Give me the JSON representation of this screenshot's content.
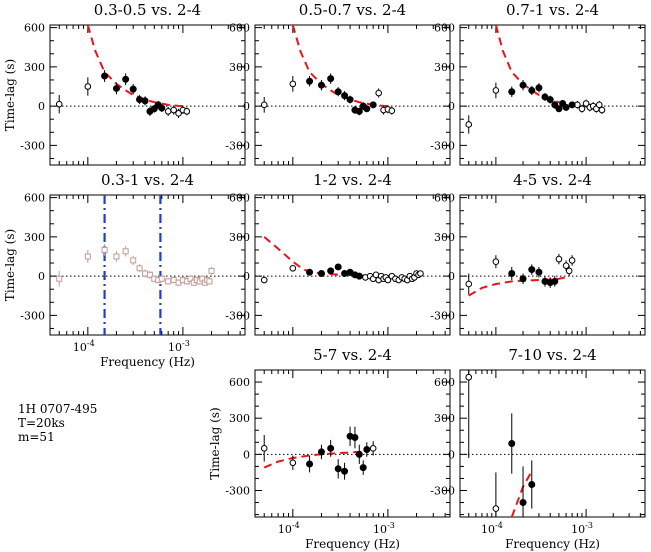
{
  "annotation": {
    "source": "1H 0707-495",
    "exposure": "T=20ks",
    "bins": "m=51"
  },
  "chart_data": [
    {
      "id": "p1",
      "type": "scatter",
      "title": "0.3-0.5 vs. 2-4",
      "ylabel": "Time-lag (s)",
      "xlabel": "",
      "xscale": "log",
      "xlim": [
        4e-05,
        0.0045
      ],
      "ylim": [
        -450,
        620
      ],
      "yticks": [
        -300,
        0,
        300,
        600
      ],
      "xticklabels": false,
      "zero_line": true,
      "model": {
        "x": [
          0.0001,
          0.00012,
          0.00015,
          0.0002,
          0.00025,
          0.0003,
          0.0004,
          0.0005,
          0.0007,
          0.0009,
          0.0011
        ],
        "y": [
          620,
          420,
          260,
          170,
          120,
          85,
          50,
          30,
          10,
          2,
          0
        ]
      },
      "series": [
        {
          "name": "open",
          "marker": "open_circle",
          "x": [
            5e-05,
            0.0001,
            0.0007,
            0.0008,
            0.0009,
            0.001,
            0.0011
          ],
          "y": [
            15,
            150,
            -40,
            -30,
            -55,
            -30,
            -40
          ],
          "err": [
            70,
            70,
            35,
            35,
            35,
            30,
            30
          ]
        },
        {
          "name": "filled",
          "marker": "filled_circle",
          "x": [
            0.00015,
            0.0002,
            0.00025,
            0.0003,
            0.00035,
            0.0004,
            0.00045,
            0.0005,
            0.00055,
            0.0006
          ],
          "y": [
            230,
            135,
            205,
            130,
            50,
            40,
            -40,
            -20,
            10,
            -15
          ],
          "err": [
            45,
            45,
            45,
            40,
            35,
            35,
            35,
            30,
            30,
            30
          ]
        }
      ]
    },
    {
      "id": "p2",
      "type": "scatter",
      "title": "0.5-0.7 vs. 2-4",
      "ylabel": "",
      "xlabel": "",
      "xscale": "log",
      "xlim": [
        4e-05,
        0.0045
      ],
      "ylim": [
        -450,
        620
      ],
      "yticks": [
        -300,
        0,
        300,
        600
      ],
      "xticklabels": false,
      "zero_line": true,
      "model": {
        "x": [
          0.0001,
          0.00012,
          0.00015,
          0.0002,
          0.00025,
          0.0003,
          0.0004,
          0.0005,
          0.0007,
          0.0009,
          0.0011
        ],
        "y": [
          620,
          420,
          260,
          170,
          120,
          85,
          50,
          30,
          10,
          2,
          0
        ]
      },
      "series": [
        {
          "name": "open",
          "marker": "open_circle",
          "x": [
            5e-05,
            0.0001,
            0.0008,
            0.0009,
            0.001,
            0.0011
          ],
          "y": [
            10,
            170,
            100,
            -30,
            -25,
            -35
          ],
          "err": [
            60,
            60,
            35,
            35,
            30,
            30
          ]
        },
        {
          "name": "filled",
          "marker": "filled_circle",
          "x": [
            0.00015,
            0.0002,
            0.00025,
            0.0003,
            0.00035,
            0.0004,
            0.00045,
            0.0005,
            0.00055,
            0.0006,
            0.0007
          ],
          "y": [
            190,
            160,
            210,
            110,
            80,
            50,
            -30,
            -40,
            0,
            -20,
            10
          ],
          "err": [
            40,
            40,
            40,
            35,
            35,
            30,
            30,
            30,
            30,
            25,
            25
          ]
        }
      ]
    },
    {
      "id": "p3",
      "type": "scatter",
      "title": "0.7-1 vs. 2-4",
      "ylabel": "",
      "xlabel": "",
      "xscale": "log",
      "xlim": [
        4e-05,
        0.0045
      ],
      "ylim": [
        -450,
        620
      ],
      "yticks": [
        -300,
        0,
        300,
        600
      ],
      "xticklabels": false,
      "zero_line": true,
      "model": {
        "x": [
          0.0001,
          0.00012,
          0.00015,
          0.0002,
          0.00025,
          0.0003,
          0.0004,
          0.0005,
          0.0007,
          0.0009,
          0.0011
        ],
        "y": [
          620,
          420,
          260,
          170,
          120,
          85,
          50,
          30,
          10,
          2,
          0
        ]
      },
      "series": [
        {
          "name": "open",
          "marker": "open_circle",
          "x": [
            5e-05,
            0.0001,
            0.0008,
            0.0009,
            0.001,
            0.0011,
            0.0012,
            0.0013,
            0.0014,
            0.0015
          ],
          "y": [
            -140,
            120,
            10,
            -20,
            20,
            -10,
            0,
            -20,
            10,
            -30
          ],
          "err": [
            70,
            60,
            30,
            30,
            30,
            30,
            30,
            30,
            30,
            30
          ]
        },
        {
          "name": "filled",
          "marker": "filled_circle",
          "x": [
            0.00015,
            0.0002,
            0.00025,
            0.0003,
            0.00035,
            0.0004,
            0.00045,
            0.0005,
            0.00055,
            0.0006,
            0.0007
          ],
          "y": [
            110,
            160,
            120,
            140,
            70,
            50,
            10,
            -20,
            20,
            -10,
            10
          ],
          "err": [
            40,
            40,
            35,
            35,
            30,
            30,
            30,
            25,
            25,
            25,
            25
          ]
        }
      ]
    },
    {
      "id": "p4",
      "type": "scatter",
      "title": "0.3-1 vs. 2-4",
      "ylabel": "Time-lag (s)",
      "xlabel": "Frequency (Hz)",
      "xscale": "log",
      "xlim": [
        4e-05,
        0.0045
      ],
      "ylim": [
        -450,
        620
      ],
      "yticks": [
        -300,
        0,
        300,
        600
      ],
      "xticklabels": true,
      "zero_line": true,
      "vlines": [
        0.00015,
        0.00058
      ],
      "series": [
        {
          "name": "open_square",
          "marker": "open_square",
          "color": "#c29a96",
          "x": [
            5e-05,
            0.0001,
            0.00015,
            0.0002,
            0.00025,
            0.0003,
            0.00035,
            0.0004,
            0.00045,
            0.0005,
            0.00055,
            0.0006,
            0.0007,
            0.0008,
            0.0009,
            0.001,
            0.0011,
            0.0012,
            0.0013,
            0.0014,
            0.0015,
            0.0016,
            0.0017,
            0.0018,
            0.0019,
            0.002
          ],
          "y": [
            -20,
            150,
            200,
            150,
            190,
            120,
            60,
            20,
            10,
            -20,
            -30,
            -20,
            -40,
            -30,
            -50,
            -30,
            -40,
            -20,
            -50,
            -30,
            -40,
            -20,
            -50,
            -30,
            -40,
            40
          ],
          "err": [
            60,
            50,
            45,
            40,
            40,
            35,
            30,
            30,
            30,
            25,
            25,
            25,
            25,
            25,
            25,
            25,
            25,
            25,
            25,
            25,
            25,
            25,
            25,
            25,
            25,
            30
          ]
        }
      ]
    },
    {
      "id": "p5",
      "type": "scatter",
      "title": "1-2 vs. 2-4",
      "ylabel": "",
      "xlabel": "",
      "xscale": "log",
      "xlim": [
        4e-05,
        0.0045
      ],
      "ylim": [
        -450,
        620
      ],
      "yticks": [
        -300,
        0,
        300,
        600
      ],
      "xticklabels": false,
      "zero_line": true,
      "model": {
        "x": [
          5e-05,
          7e-05,
          0.0001,
          0.00013,
          0.00016,
          0.0002,
          0.0003,
          0.0005,
          0.0008,
          0.0012
        ],
        "y": [
          300,
          210,
          110,
          50,
          30,
          20,
          12,
          5,
          2,
          0
        ]
      },
      "series": [
        {
          "name": "open",
          "marker": "open_circle",
          "x": [
            5e-05,
            0.0001,
            0.00058,
            0.00065,
            0.0007,
            0.00075,
            0.0008,
            0.00085,
            0.0009,
            0.00095,
            0.001,
            0.0011,
            0.0012,
            0.0013,
            0.0014,
            0.0015,
            0.0016,
            0.0017,
            0.0018,
            0.0019,
            0.002,
            0.0021,
            0.0022
          ],
          "y": [
            -30,
            60,
            -10,
            0,
            -20,
            10,
            -30,
            0,
            -20,
            -10,
            -30,
            0,
            -20,
            -30,
            -10,
            -20,
            -30,
            0,
            -20,
            -10,
            20,
            10,
            20
          ],
          "err": [
            25,
            20,
            15,
            15,
            15,
            15,
            15,
            15,
            15,
            15,
            15,
            15,
            15,
            15,
            15,
            15,
            15,
            15,
            15,
            15,
            15,
            15,
            15
          ]
        },
        {
          "name": "filled",
          "marker": "filled_circle",
          "x": [
            0.00015,
            0.0002,
            0.00025,
            0.0003,
            0.00035,
            0.0004,
            0.00045,
            0.0005
          ],
          "y": [
            30,
            20,
            40,
            70,
            20,
            30,
            10,
            0
          ],
          "err": [
            15,
            15,
            15,
            15,
            15,
            15,
            15,
            15
          ]
        }
      ]
    },
    {
      "id": "p6",
      "type": "scatter",
      "title": "4-5 vs. 2-4",
      "ylabel": "",
      "xlabel": "",
      "xscale": "log",
      "xlim": [
        4e-05,
        0.0045
      ],
      "ylim": [
        -450,
        620
      ],
      "yticks": [
        -300,
        0,
        300,
        600
      ],
      "xticklabels": false,
      "zero_line": true,
      "model": {
        "x": [
          5e-05,
          7e-05,
          0.0001,
          0.00015,
          0.0002,
          0.0003,
          0.0004,
          0.0005,
          0.0006
        ],
        "y": [
          -150,
          -90,
          -60,
          -40,
          -35,
          -30,
          -25,
          -20,
          -10
        ]
      },
      "series": [
        {
          "name": "open",
          "marker": "open_circle",
          "x": [
            5e-05,
            0.0001,
            0.0005,
            0.0006,
            0.00065,
            0.0007
          ],
          "y": [
            -60,
            110,
            130,
            80,
            40,
            120
          ],
          "err": [
            80,
            50,
            40,
            40,
            40,
            40
          ]
        },
        {
          "name": "filled",
          "marker": "filled_circle",
          "x": [
            0.00015,
            0.0002,
            0.00025,
            0.0003,
            0.00035,
            0.0004,
            0.00045
          ],
          "y": [
            20,
            -20,
            50,
            30,
            -40,
            -50,
            -40
          ],
          "err": [
            50,
            40,
            40,
            40,
            40,
            40,
            40
          ]
        }
      ]
    },
    {
      "id": "p7",
      "type": "scatter",
      "title": "5-7 vs. 2-4",
      "ylabel": "Time-lag (s)",
      "xlabel": "Frequency (Hz)",
      "xscale": "log",
      "xlim": [
        4e-05,
        0.0045
      ],
      "ylim": [
        -520,
        700
      ],
      "yticks": [
        -300,
        0,
        300,
        600
      ],
      "xticklabels": true,
      "zero_line": true,
      "model": {
        "x": [
          5e-05,
          7e-05,
          0.0001,
          0.00015,
          0.0002,
          0.0003,
          0.0004,
          0.0005,
          0.0006
        ],
        "y": [
          -110,
          -60,
          -30,
          -10,
          0,
          10,
          15,
          20,
          25
        ]
      },
      "series": [
        {
          "name": "open",
          "marker": "open_circle",
          "x": [
            5e-05,
            0.0001,
            0.0007
          ],
          "y": [
            50,
            -70,
            50
          ],
          "err": [
            110,
            60,
            60
          ]
        },
        {
          "name": "filled",
          "marker": "filled_circle",
          "x": [
            0.00015,
            0.0002,
            0.00025,
            0.0003,
            0.00035,
            0.0004,
            0.00045,
            0.0005,
            0.00055,
            0.0006
          ],
          "y": [
            -80,
            20,
            50,
            -120,
            -140,
            150,
            140,
            0,
            -110,
            40
          ],
          "err": [
            70,
            60,
            70,
            80,
            70,
            80,
            90,
            80,
            60,
            60
          ]
        }
      ]
    },
    {
      "id": "p8",
      "type": "scatter",
      "title": "7-10 vs. 2-4",
      "ylabel": "",
      "xlabel": "Frequency (Hz)",
      "xscale": "log",
      "xlim": [
        4e-05,
        0.0045
      ],
      "ylim": [
        -520,
        700
      ],
      "yticks": [
        -300,
        0,
        300,
        600
      ],
      "xticklabels": true,
      "zero_line": true,
      "model": {
        "x": [
          0.00015,
          0.0002,
          0.00025
        ],
        "y": [
          -520,
          -270,
          -140
        ]
      },
      "series": [
        {
          "name": "open",
          "marker": "open_circle",
          "x": [
            5e-05,
            0.0001
          ],
          "y": [
            640,
            -450
          ],
          "err": [
            670,
            300
          ]
        },
        {
          "name": "filled",
          "marker": "filled_circle",
          "x": [
            0.00015,
            0.0002,
            0.00025
          ],
          "y": [
            90,
            -400,
            -250
          ],
          "err": [
            250,
            300,
            200
          ]
        }
      ]
    }
  ]
}
